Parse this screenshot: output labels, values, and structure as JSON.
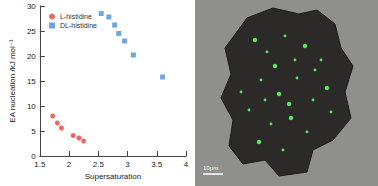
{
  "chart_data": {
    "type": "scatter",
    "x_label": "Supersaturation",
    "y_label": "EA nucleation /kJ mol⁻¹",
    "xlim": [
      1.5,
      4
    ],
    "xticks": [
      1.5,
      2,
      2.5,
      3,
      3.5,
      4
    ],
    "ylim": [
      0,
      30
    ],
    "yticks": [
      0,
      5,
      10,
      15,
      20,
      25,
      30
    ],
    "grid": false,
    "legend": "top-left",
    "series": [
      {
        "name": "L-histidine",
        "color": "#e8413d",
        "marker": "circle",
        "x": [
          1.72,
          1.8,
          1.87,
          2.07,
          2.17,
          2.25
        ],
        "values": [
          8,
          6.6,
          5.6,
          4.1,
          3.6,
          3.0
        ]
      },
      {
        "name": "DL-histidine",
        "color": "#4a90d9",
        "marker": "square",
        "x": [
          2.55,
          2.68,
          2.78,
          2.85,
          2.95,
          3.1,
          3.6
        ],
        "values": [
          28.5,
          27.8,
          26.2,
          24.5,
          23,
          20.2,
          15.8
        ]
      }
    ]
  },
  "micrograph": {
    "scale_bar": "10µm"
  }
}
